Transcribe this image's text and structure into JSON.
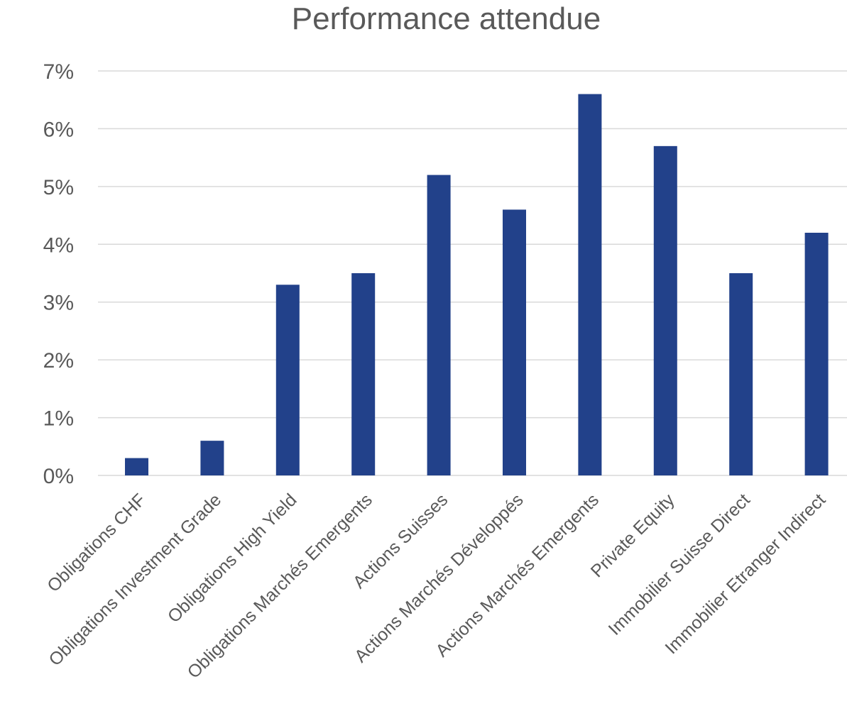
{
  "chart_data": {
    "type": "bar",
    "title": "Performance attendue",
    "xlabel": "",
    "ylabel": "",
    "categories": [
      "Obligations CHF",
      "Obligations Investment Grade",
      "Obligations High Yield",
      "Obligations Marchés Emergents",
      "Actions Suisses",
      "Actions Marchés Développés",
      "Actions Marchés Emergents",
      "Private Equity",
      "Immobilier Suisse Direct",
      "Immobilier Etranger Indirect"
    ],
    "values": [
      0.3,
      0.6,
      3.3,
      3.5,
      5.2,
      4.6,
      6.6,
      5.7,
      3.5,
      4.2
    ],
    "ylim": [
      0,
      7
    ],
    "yticks": [
      "0%",
      "1%",
      "2%",
      "3%",
      "4%",
      "5%",
      "6%",
      "7%"
    ],
    "grid": true,
    "legend": "none",
    "colors": {
      "bar": "#22418A",
      "grid": "#D9D9D9",
      "text": "#595959"
    }
  }
}
